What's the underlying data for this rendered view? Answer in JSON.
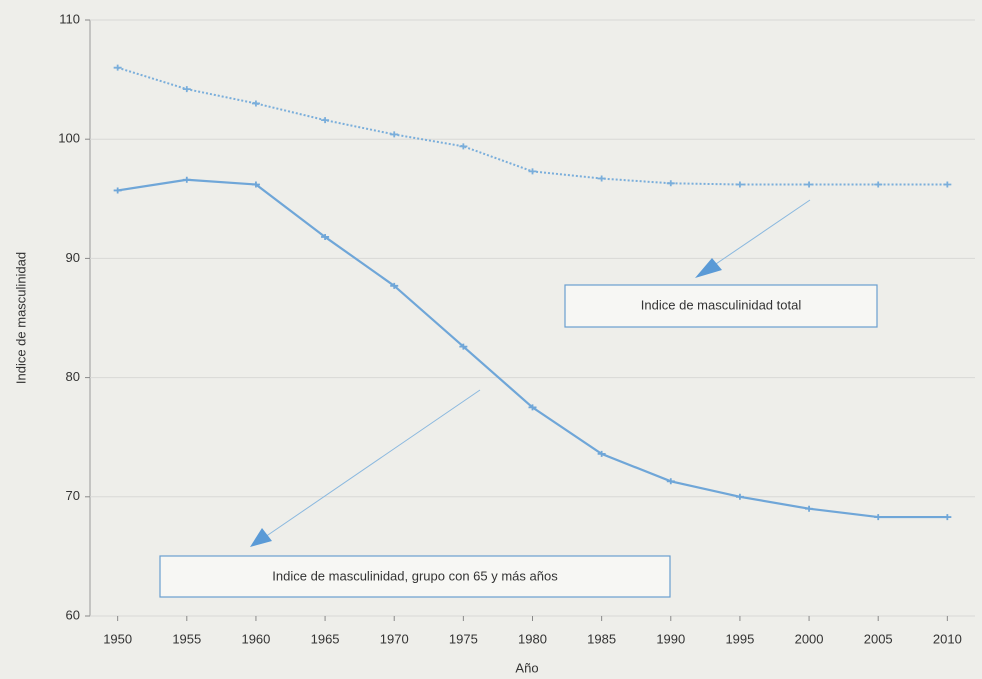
{
  "chart_data": {
    "type": "line",
    "x": [
      1950,
      1955,
      1960,
      1965,
      1970,
      1975,
      1980,
      1985,
      1990,
      1995,
      2000,
      2005,
      2010
    ],
    "series": [
      {
        "name": "Indice de masculinidad total",
        "color": "#7aaedb",
        "line_style": "dotted",
        "values": [
          106.0,
          104.2,
          103.0,
          101.6,
          100.4,
          99.4,
          97.3,
          96.7,
          96.3,
          96.2,
          96.2,
          96.2,
          96.2
        ]
      },
      {
        "name": "Indice de masculinidad, grupo con 65 y más años",
        "color": "#6fa6d8",
        "line_style": "solid",
        "values": [
          95.7,
          96.6,
          96.2,
          91.8,
          87.7,
          82.6,
          77.5,
          73.6,
          71.3,
          70.0,
          69.0,
          68.3,
          68.3
        ]
      }
    ],
    "xlabel": "Año",
    "ylabel": "Indice de masculinidad",
    "xlim": [
      1948,
      2012
    ],
    "xticks": [
      1950,
      1955,
      1960,
      1965,
      1970,
      1975,
      1980,
      1985,
      1990,
      1995,
      2000,
      2005,
      2010
    ],
    "ylim": [
      60,
      110
    ],
    "yticks": [
      60,
      70,
      80,
      90,
      100,
      110
    ],
    "grid": true
  }
}
